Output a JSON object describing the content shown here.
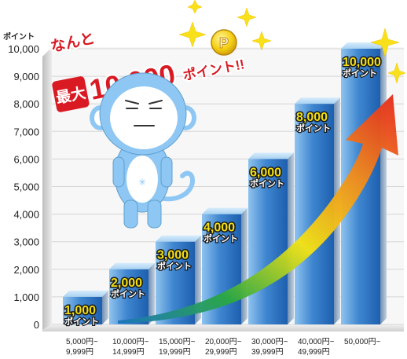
{
  "headline": {
    "prefix": "なんと",
    "main_max": "最大",
    "main_amount": "10,000",
    "main_suffix": "ポイント!!",
    "coin_letter": "P"
  },
  "colors": {
    "bar_dark": "#1d5fae",
    "bar_light": "#8fc3ee",
    "value_label": "#f2df12",
    "grid": "#d5d5d5",
    "headline_red": "#d91a23",
    "arrow_red": "#e5261c",
    "arrow_yellow": "#f3e214",
    "arrow_green": "#2aa842",
    "arrow_blue": "#1b75bc",
    "sparkle": "#f8e01a",
    "mascot": "#8ec7f3"
  },
  "mascot_icon": "blue-monkey-mascot",
  "chart_data": {
    "type": "bar",
    "ylabel": "ポイント",
    "ylim": [
      0,
      10000
    ],
    "y_ticks": [
      "0",
      "1,000",
      "2,000",
      "3,000",
      "4,000",
      "5,000",
      "6,000",
      "7,000",
      "8,000",
      "9,000",
      "10,000"
    ],
    "categories": [
      [
        "5,000円~",
        "9,999円"
      ],
      [
        "10,000円~",
        "14,999円"
      ],
      [
        "15,000円~",
        "19,999円"
      ],
      [
        "20,000円~",
        "29,999円"
      ],
      [
        "30,000円~",
        "39,999円"
      ],
      [
        "40,000円~",
        "49,999円"
      ],
      [
        "50,000円~",
        ""
      ]
    ],
    "values": [
      1000,
      2000,
      3000,
      4000,
      6000,
      8000,
      10000
    ],
    "value_labels": [
      "1,000",
      "2,000",
      "3,000",
      "4,000",
      "6,000",
      "8,000",
      "10,000"
    ],
    "unit_label": "ポイント"
  }
}
